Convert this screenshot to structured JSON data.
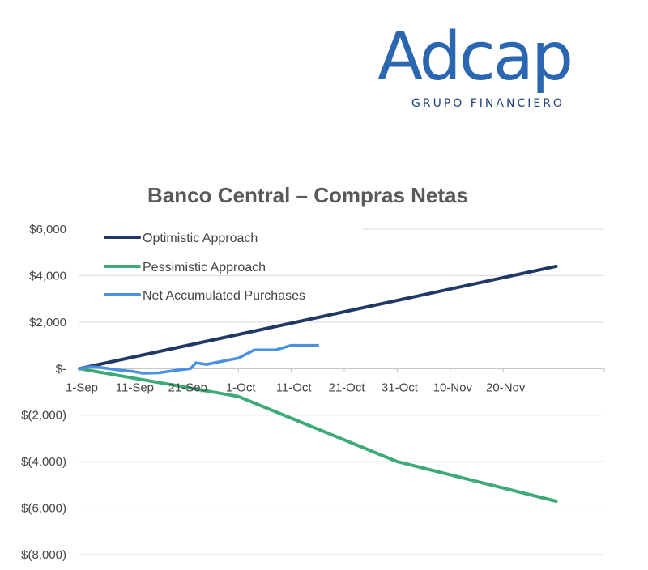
{
  "logo": {
    "word": "Adcap",
    "subtitle": "GRUPO FINANCIERO"
  },
  "colors": {
    "optimistic": "#1f3864",
    "pessimistic": "#3daa78",
    "net": "#4a90e2",
    "grid": "#d9d9d9",
    "axis": "#bfbfbf"
  },
  "chart_data": {
    "type": "line",
    "title": "Banco Central – Compras Netas",
    "xlabel": "",
    "ylabel": "",
    "x_ticks": [
      "1-Sep",
      "11-Sep",
      "21-Sep",
      "1-Oct",
      "11-Oct",
      "21-Oct",
      "31-Oct",
      "10-Nov",
      "20-Nov"
    ],
    "y_ticks": [
      {
        "value": 6000,
        "label": "$6,000"
      },
      {
        "value": 4000,
        "label": "$4,000"
      },
      {
        "value": 2000,
        "label": "$2,000"
      },
      {
        "value": 0,
        "label": "$-"
      },
      {
        "value": -2000,
        "label": "$(2,000)"
      },
      {
        "value": -4000,
        "label": "$(4,000)"
      },
      {
        "value": -6000,
        "label": "$(6,000)"
      },
      {
        "value": -8000,
        "label": "$(8,000)"
      }
    ],
    "ylim": [
      -8000,
      6000
    ],
    "grid": true,
    "legend_position": "top-left",
    "series": [
      {
        "name": "Optimistic Approach",
        "color": "#1f3864",
        "points": [
          [
            "1-Sep",
            0
          ],
          [
            "30-Nov",
            4400
          ]
        ]
      },
      {
        "name": "Pessimistic Approach",
        "color": "#3daa78",
        "points": [
          [
            "1-Sep",
            0
          ],
          [
            "1-Oct",
            -1200
          ],
          [
            "31-Oct",
            -4000
          ],
          [
            "30-Nov",
            -5700
          ]
        ]
      },
      {
        "name": "Net Accumulated Purchases",
        "color": "#4a90e2",
        "points": [
          [
            "1-Sep",
            0
          ],
          [
            "3-Sep",
            80
          ],
          [
            "5-Sep",
            50
          ],
          [
            "8-Sep",
            -50
          ],
          [
            "11-Sep",
            -120
          ],
          [
            "13-Sep",
            -200
          ],
          [
            "16-Sep",
            -180
          ],
          [
            "19-Sep",
            -80
          ],
          [
            "22-Sep",
            0
          ],
          [
            "23-Sep",
            250
          ],
          [
            "25-Sep",
            180
          ],
          [
            "28-Sep",
            320
          ],
          [
            "1-Oct",
            450
          ],
          [
            "4-Oct",
            800
          ],
          [
            "8-Oct",
            800
          ],
          [
            "11-Oct",
            1000
          ],
          [
            "16-Oct",
            1000
          ]
        ]
      }
    ]
  }
}
